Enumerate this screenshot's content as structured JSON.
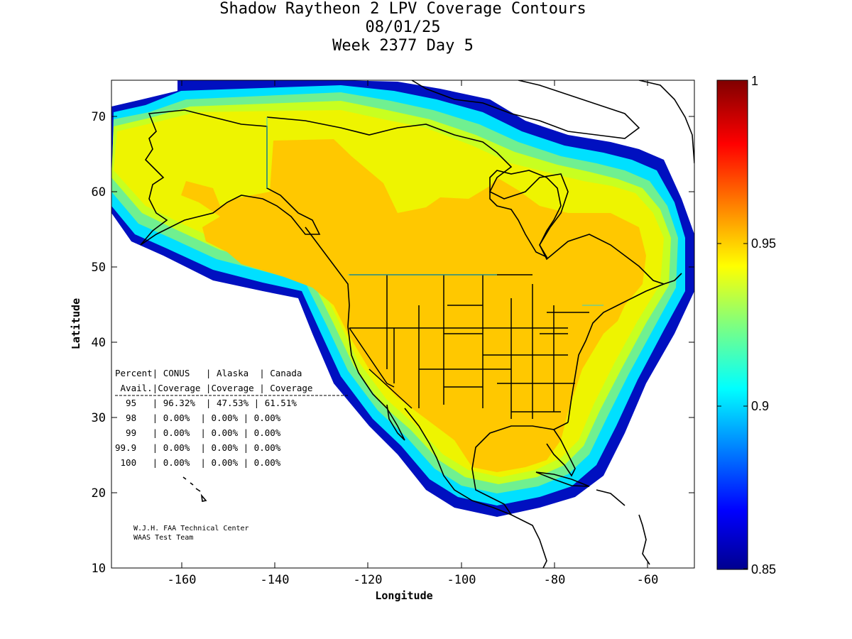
{
  "title": {
    "line1": "Shadow Raytheon 2 LPV Coverage Contours",
    "line2": "08/01/25",
    "line3": "Week 2377 Day 5"
  },
  "axes": {
    "xlabel": "Longitude",
    "ylabel": "Latitude",
    "xticks": [
      "-160",
      "-140",
      "-120",
      "-100",
      "-80",
      "-60"
    ],
    "yticks": [
      "70",
      "60",
      "50",
      "40",
      "30",
      "20",
      "10"
    ]
  },
  "colorbar": {
    "ticks": [
      "1",
      "0.95",
      "0.9",
      "0.85"
    ],
    "range": [
      0.85,
      1.0
    ],
    "colormap": "jet"
  },
  "table": {
    "header1": "Percent| CONUS   | Alaska  | Canada",
    "header2": " Avail.|Coverage |Coverage | Coverage",
    "separator": "------------------------------------------",
    "rows": [
      "  95   | 96.32%  | 47.53% | 61.51%",
      "  98   | 0.00%  | 0.00% | 0.00%",
      "  99   | 0.00%  | 0.00% | 0.00%",
      "99.9   | 0.00%  | 0.00% | 0.00%",
      " 100   | 0.00%  | 0.00% | 0.00%"
    ]
  },
  "credit": {
    "line1": "W.J.H. FAA Technical Center",
    "line2": "WAAS Test Team"
  },
  "map": {
    "projection": "equirectangular",
    "lon_range": [
      -175,
      -50
    ],
    "lat_range": [
      10,
      75
    ],
    "colors": {
      "high": "#ffc800",
      "mid": "#f0f000",
      "mid_low": "#aaff55",
      "low": "#00d8ff",
      "lowest": "#0000a0",
      "outline": "#000000",
      "border_aux": "#30d0d0"
    }
  }
}
